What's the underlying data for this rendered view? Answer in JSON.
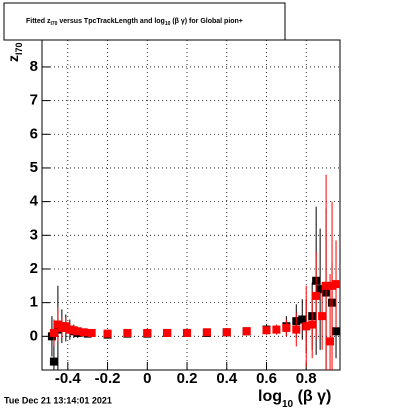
{
  "chart_data": {
    "type": "errorbar",
    "title": [
      "Fitted  z",
      "I70",
      "  versus TpcTrackLength and log",
      "10",
      " (β γ) for Global pion+"
    ],
    "x_label": [
      "log",
      "10",
      " (β γ)"
    ],
    "y_label": [
      "z",
      "I70"
    ],
    "footer": "Tue Dec 21 13:14:01 2021",
    "xlim": [
      -0.53,
      0.97
    ],
    "ylim": [
      -1,
      8.8
    ],
    "xticks": [
      -0.4,
      -0.2,
      0,
      0.2,
      0.4,
      0.6,
      0.8
    ],
    "yticks": [
      0,
      1,
      2,
      3,
      4,
      5,
      6,
      7,
      8
    ],
    "grid": true,
    "series": [
      {
        "color": "#000000",
        "x": [
          -0.48,
          -0.47,
          -0.45,
          -0.43,
          -0.41,
          -0.39,
          -0.37,
          -0.35,
          -0.3,
          -0.2,
          -0.1,
          0,
          0.1,
          0.2,
          0.3,
          0.4,
          0.5,
          0.6,
          0.7,
          0.75,
          0.78,
          0.8,
          0.83,
          0.85,
          0.87,
          0.9,
          0.93,
          0.95
        ],
        "values": [
          0.0,
          -0.75,
          0.2,
          0.3,
          0.25,
          0.2,
          0.15,
          0.1,
          0.08,
          0.05,
          0.08,
          0.08,
          0.1,
          0.1,
          0.1,
          0.12,
          0.15,
          0.2,
          0.3,
          0.45,
          0.5,
          0.3,
          0.6,
          1.65,
          1.4,
          1.3,
          1.0,
          0.15
        ],
        "errors": [
          0.6,
          0.7,
          1.3,
          0.5,
          0.4,
          0.3,
          0.2,
          0.15,
          0.1,
          0.05,
          0.05,
          0.05,
          0.05,
          0.05,
          0.05,
          0.06,
          0.08,
          0.15,
          0.3,
          0.5,
          0.6,
          0.8,
          1.0,
          2.2,
          1.8,
          2.5,
          1.2,
          0.8
        ]
      },
      {
        "color": "#ff0000",
        "x": [
          -0.47,
          -0.45,
          -0.43,
          -0.41,
          -0.39,
          -0.37,
          -0.35,
          -0.32,
          -0.28,
          -0.2,
          -0.1,
          0,
          0.1,
          0.2,
          0.3,
          0.4,
          0.5,
          0.6,
          0.65,
          0.7,
          0.75,
          0.8,
          0.83,
          0.85,
          0.88,
          0.9,
          0.92,
          0.93,
          0.95
        ],
        "values": [
          0.1,
          0.35,
          0.25,
          0.3,
          0.2,
          0.18,
          0.15,
          0.12,
          0.1,
          0.08,
          0.1,
          0.1,
          0.1,
          0.1,
          0.12,
          0.12,
          0.15,
          0.18,
          0.2,
          0.25,
          0.2,
          0.3,
          0.35,
          1.2,
          0.6,
          1.5,
          -0.15,
          1.5,
          1.55
        ],
        "errors": [
          0.4,
          0.5,
          0.3,
          0.25,
          0.2,
          0.15,
          0.12,
          0.1,
          0.08,
          0.05,
          0.05,
          0.05,
          0.05,
          0.05,
          0.05,
          0.06,
          0.08,
          0.1,
          0.15,
          0.25,
          0.5,
          1.2,
          1.0,
          1.3,
          1.0,
          3.3,
          2.0,
          2.5,
          1.3
        ]
      }
    ]
  }
}
